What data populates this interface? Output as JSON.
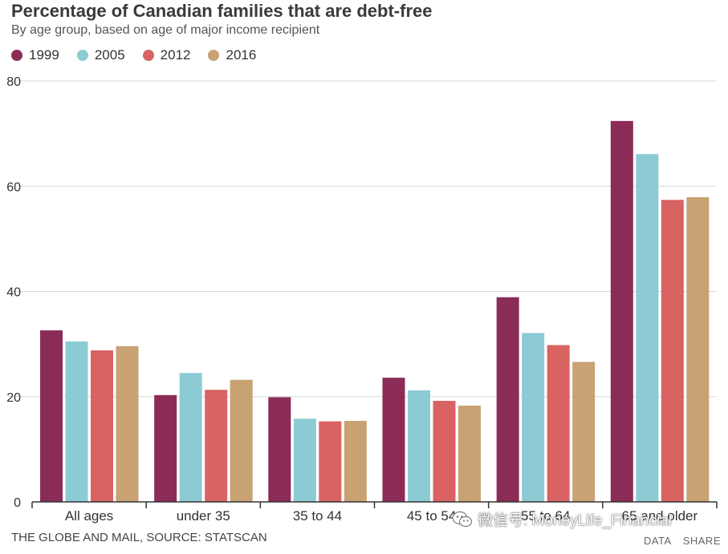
{
  "header": {
    "title": "Percentage of Canadian families that are debt-free",
    "subtitle": "By age group, based on age of major income recipient"
  },
  "colors": {
    "1999": "#8b2c57",
    "2005": "#8ccbd4",
    "2012": "#d86362",
    "2016": "#c8a273",
    "gridline": "#d9d9d9",
    "axis": "#333333"
  },
  "chart_data": {
    "type": "bar",
    "categories": [
      "All ages",
      "under 35",
      "35 to 44",
      "45 to 54",
      "55 to 64",
      "65 and older"
    ],
    "series": [
      {
        "name": "1999",
        "values": [
          32.6,
          20.3,
          19.9,
          23.6,
          38.9,
          72.4
        ]
      },
      {
        "name": "2005",
        "values": [
          30.5,
          24.5,
          15.8,
          21.2,
          32.1,
          66.1
        ]
      },
      {
        "name": "2012",
        "values": [
          28.8,
          21.3,
          15.3,
          19.2,
          29.8,
          57.4
        ]
      },
      {
        "name": "2016",
        "values": [
          29.6,
          23.2,
          15.4,
          18.3,
          26.6,
          57.9
        ]
      }
    ],
    "ylim": [
      0,
      80
    ],
    "yticks": [
      "0",
      "20",
      "40",
      "60",
      "80"
    ],
    "grid": true,
    "legend": "top-left"
  },
  "footer": {
    "credit": "THE GLOBE AND MAIL, SOURCE: STATSCAN",
    "data_label": "DATA",
    "share_label": "SHARE"
  },
  "watermark": {
    "text": "微信号: MoneyLife_Financial"
  }
}
